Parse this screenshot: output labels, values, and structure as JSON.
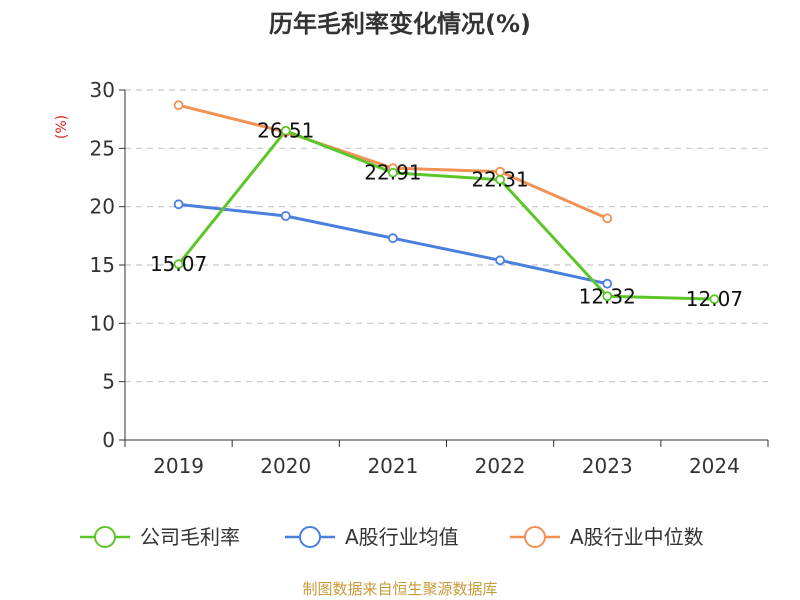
{
  "title": "历年毛利率变化情况(%)",
  "unit_label": "(%)",
  "source": "制图数据来自恒生聚源数据库",
  "chart_data": {
    "type": "line",
    "title": "历年毛利率变化情况(%)",
    "ylabel": "(%)",
    "xlabel": "",
    "categories": [
      "2019",
      "2020",
      "2021",
      "2022",
      "2023",
      "2024"
    ],
    "ylim": [
      0,
      30
    ],
    "yticks": [
      0,
      5,
      10,
      15,
      20,
      25,
      30
    ],
    "grid": true,
    "legend_position": "bottom",
    "series": [
      {
        "name": "公司毛利率",
        "color": "#5cc629",
        "values": [
          15.07,
          26.51,
          22.91,
          22.31,
          12.32,
          12.07
        ],
        "labels": [
          "15.07",
          "26.51",
          "22.91",
          "22.31",
          "12.32",
          "12.07"
        ]
      },
      {
        "name": "A股行业均值",
        "color": "#4a7fde",
        "values": [
          20.2,
          19.2,
          17.3,
          15.4,
          13.4,
          null
        ]
      },
      {
        "name": "A股行业中位数",
        "color": "#f39155",
        "values": [
          28.7,
          26.4,
          23.3,
          23.0,
          19.0,
          null
        ]
      }
    ]
  }
}
